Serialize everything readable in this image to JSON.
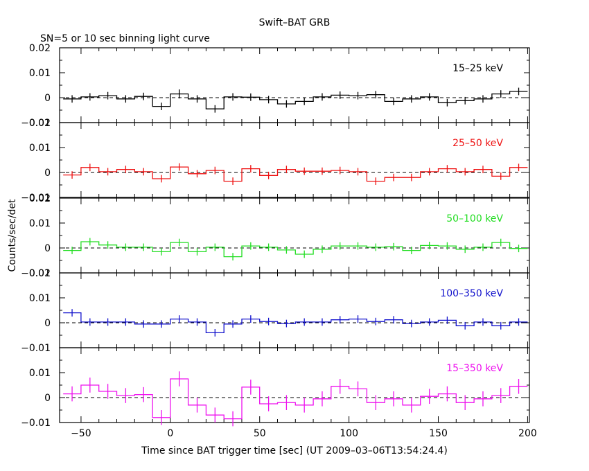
{
  "title": "Swift–BAT GRB",
  "subtitle": "SN=5 or 10 sec binning light curve",
  "ylabel": "Counts/sec/det",
  "xlabel": "Time since BAT trigger time [sec] (UT 2009–03–06T13:54:24.4)",
  "x_ticks": [
    "−50",
    "0",
    "50",
    "100",
    "150",
    "200"
  ],
  "x_tick_values": [
    -50,
    0,
    50,
    100,
    150,
    200
  ],
  "chart_data": {
    "type": "line",
    "xlim": [
      -62,
      201
    ],
    "x_bins": [
      -60,
      -50,
      -40,
      -30,
      -20,
      -10,
      0,
      10,
      20,
      30,
      40,
      50,
      60,
      70,
      80,
      90,
      100,
      110,
      120,
      130,
      140,
      150,
      160,
      170,
      180,
      190,
      200
    ],
    "panels": [
      {
        "name": "15–25 keV",
        "color": "#000000",
        "ylim": [
          -0.01,
          0.02
        ],
        "yticks": [
          -0.01,
          0,
          0.01,
          0.02
        ],
        "ytick_labels": [
          "−0.01",
          "0",
          "0.01",
          "0.02"
        ],
        "values": [
          -0.0005,
          0.0003,
          0.0008,
          -0.0005,
          0.0005,
          -0.0035,
          0.0015,
          -0.0005,
          -0.0045,
          0.0003,
          0.0002,
          -0.0008,
          -0.0025,
          -0.0015,
          0.0003,
          0.001,
          0.0008,
          0.0012,
          -0.0015,
          -0.0005,
          0.0003,
          -0.002,
          -0.0012,
          -0.0005,
          0.0015,
          0.0025
        ],
        "errors": [
          0.0015,
          0.0015,
          0.0015,
          0.0015,
          0.0015,
          0.0015,
          0.0018,
          0.0015,
          0.0015,
          0.0015,
          0.0015,
          0.0015,
          0.0015,
          0.0015,
          0.0015,
          0.0015,
          0.0015,
          0.0015,
          0.0015,
          0.0015,
          0.0015,
          0.0015,
          0.0015,
          0.0015,
          0.0015,
          0.0015
        ]
      },
      {
        "name": "25–50 keV",
        "color": "#ee1111",
        "ylim": [
          -0.01,
          0.02
        ],
        "yticks": [
          -0.01,
          0,
          0.01,
          0.02
        ],
        "ytick_labels": [
          "−0.01",
          "0",
          "0.01",
          "0.02"
        ],
        "values": [
          -0.001,
          0.002,
          0.0003,
          0.0012,
          0.0003,
          -0.0025,
          0.0022,
          -0.0005,
          0.0008,
          -0.0035,
          0.0015,
          -0.0012,
          0.0012,
          0.0005,
          0.0005,
          0.0008,
          0.0003,
          -0.0035,
          -0.002,
          -0.002,
          0.0003,
          0.0015,
          0.0003,
          0.0012,
          -0.0015,
          0.002
        ],
        "errors": [
          0.0015,
          0.0015,
          0.0015,
          0.0015,
          0.0015,
          0.0015,
          0.0015,
          0.0015,
          0.0015,
          0.0015,
          0.0015,
          0.0015,
          0.0015,
          0.0015,
          0.0015,
          0.0015,
          0.0015,
          0.0015,
          0.0015,
          0.0015,
          0.0015,
          0.0015,
          0.0015,
          0.0015,
          0.0015,
          0.0015
        ]
      },
      {
        "name": "50–100 keV",
        "color": "#22dd22",
        "ylim": [
          -0.01,
          0.02
        ],
        "yticks": [
          -0.01,
          0,
          0.01,
          0.02
        ],
        "ytick_labels": [
          "−0.01",
          "0",
          "0.01",
          "0.02"
        ],
        "values": [
          -0.001,
          0.0025,
          0.0012,
          0.0003,
          0.0003,
          -0.0015,
          0.0022,
          -0.0015,
          0.0003,
          -0.0035,
          0.0008,
          0.0003,
          -0.0008,
          -0.0025,
          -0.0005,
          0.0008,
          0.0008,
          0.0003,
          0.0005,
          -0.001,
          0.001,
          0.0008,
          -0.0005,
          0.0003,
          0.0022,
          -0.0002
        ],
        "errors": [
          0.0015,
          0.0015,
          0.0015,
          0.0015,
          0.0015,
          0.0015,
          0.0015,
          0.0015,
          0.0015,
          0.0015,
          0.0015,
          0.0015,
          0.0015,
          0.0015,
          0.0015,
          0.0015,
          0.0015,
          0.0015,
          0.0015,
          0.0015,
          0.0015,
          0.0015,
          0.0015,
          0.0015,
          0.0015,
          0.0015
        ]
      },
      {
        "name": "100–350 keV",
        "color": "#1111cc",
        "ylim": [
          -0.01,
          0.02
        ],
        "yticks": [
          -0.01,
          0,
          0.01,
          0.02
        ],
        "ytick_labels": [
          "−0.01",
          "0",
          "0.01",
          "0.02"
        ],
        "values": [
          0.004,
          0.0003,
          0.0003,
          0.0003,
          -0.0005,
          -0.0005,
          0.0015,
          0.0003,
          -0.004,
          -0.0005,
          0.0015,
          0.0005,
          -0.0003,
          0.0003,
          0.0003,
          0.0012,
          0.0015,
          0.0005,
          0.0012,
          -0.0003,
          0.0003,
          0.001,
          -0.0012,
          0.0003,
          -0.0012,
          0.0003
        ],
        "errors": [
          0.0015,
          0.0015,
          0.0015,
          0.0015,
          0.0015,
          0.0015,
          0.0015,
          0.0015,
          0.0015,
          0.0015,
          0.0015,
          0.0015,
          0.0015,
          0.0015,
          0.0015,
          0.0015,
          0.0015,
          0.0015,
          0.0015,
          0.0015,
          0.0015,
          0.0015,
          0.0015,
          0.0015,
          0.0015,
          0.0015
        ]
      },
      {
        "name": "15–350 keV",
        "color": "#ee11ee",
        "ylim": [
          -0.01,
          0.02
        ],
        "yticks": [
          -0.01,
          0,
          0.01
        ],
        "ytick_labels": [
          "−0.01",
          "0",
          "0.01"
        ],
        "values": [
          0.0015,
          0.005,
          0.0025,
          0.0008,
          0.0012,
          -0.008,
          0.0075,
          -0.003,
          -0.007,
          -0.0085,
          0.0042,
          -0.0025,
          -0.002,
          -0.003,
          -0.0005,
          0.0045,
          0.0035,
          -0.002,
          -0.0005,
          -0.003,
          0.0005,
          0.0015,
          -0.002,
          -0.0005,
          0.0008,
          0.0045
        ],
        "errors": [
          0.003,
          0.003,
          0.003,
          0.003,
          0.003,
          0.003,
          0.003,
          0.003,
          0.003,
          0.003,
          0.003,
          0.003,
          0.003,
          0.003,
          0.003,
          0.003,
          0.003,
          0.003,
          0.003,
          0.003,
          0.003,
          0.003,
          0.003,
          0.003,
          0.003,
          0.003
        ]
      }
    ]
  }
}
